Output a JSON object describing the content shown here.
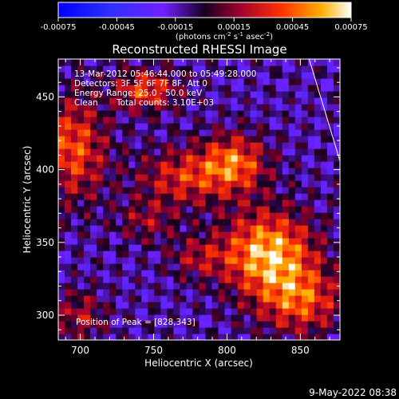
{
  "colorbar": {
    "ticks": [
      "-0.00075",
      "-0.00045",
      "-0.00015",
      "0.00015",
      "0.00045",
      "0.00075"
    ],
    "tick_values": [
      -0.00075,
      -0.00045,
      -0.00015,
      0.00015,
      0.00045,
      0.00075
    ],
    "unit_main": "(photons cm",
    "unit_sup1": "-2",
    "unit_mid": " s",
    "unit_sup2": "-1",
    "unit_end": " asec",
    "unit_sup3": "-2",
    "unit_close": ")"
  },
  "annotations": {
    "time": "13-Mar-2012 05:46:44.000 to 05:49:28.000",
    "detectors": "Detectors: 3F 5F 6F 7F 8F, Att 0",
    "energy": "Energy Range: 25.0 - 50.0 keV",
    "clean": "Clean",
    "counts": "Total counts: 3.10E+03",
    "peak": "Position of Peak = [828,343]"
  },
  "footer": {
    "date": "9-May-2022 08:38"
  },
  "chart_data": {
    "type": "heatmap",
    "title": "Reconstructed RHESSI Image",
    "xlabel": "Heliocentric X (arcsec)",
    "ylabel": "Heliocentric Y (arcsec)",
    "xlim": [
      685,
      877
    ],
    "ylim": [
      283,
      476
    ],
    "x_ticks": [
      700,
      750,
      800,
      850
    ],
    "y_ticks": [
      300,
      350,
      400,
      450
    ],
    "color_range": [
      -0.00075,
      0.00075
    ],
    "peak": [
      828,
      343
    ],
    "limb_line": [
      [
        856,
        476
      ],
      [
        877,
        406
      ]
    ],
    "sources": [
      {
        "x": 828,
        "y": 343,
        "sx": 22,
        "sy": 20,
        "amp": 0.00075
      },
      {
        "x": 805,
        "y": 405,
        "sx": 16,
        "sy": 14,
        "amp": 0.00055
      },
      {
        "x": 745,
        "y": 455,
        "sx": 15,
        "sy": 10,
        "amp": 0.0005
      },
      {
        "x": 695,
        "y": 415,
        "sx": 16,
        "sy": 25,
        "amp": 0.00052
      },
      {
        "x": 770,
        "y": 395,
        "sx": 22,
        "sy": 14,
        "amp": 0.00042
      },
      {
        "x": 850,
        "y": 310,
        "sx": 20,
        "sy": 16,
        "amp": 0.0005
      },
      {
        "x": 700,
        "y": 300,
        "sx": 12,
        "sy": 12,
        "amp": 0.00032
      },
      {
        "x": 780,
        "y": 340,
        "sx": 14,
        "sy": 10,
        "amp": 0.00028
      },
      {
        "x": 745,
        "y": 365,
        "sx": 14,
        "sy": 10,
        "amp": 0.00026
      }
    ]
  }
}
